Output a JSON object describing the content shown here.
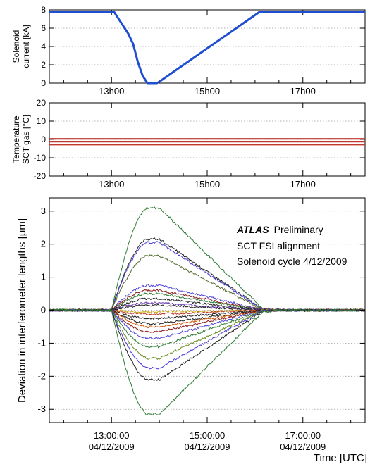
{
  "colors": {
    "solenoid_line": "#1f4fd1",
    "temperature_line": "#c0392b",
    "grid": "#9a9a9a",
    "frame": "#000000"
  },
  "chart_data": [
    {
      "type": "line",
      "panel": "solenoid",
      "ylabel_line1": "Solenoid",
      "ylabel_line2": "current [kA]",
      "x_unit": "hours UTC",
      "xlim": [
        11.7,
        18.3
      ],
      "ylim": [
        0,
        8
      ],
      "yticks": [
        0,
        2,
        4,
        6,
        8
      ],
      "xticks": [
        13,
        15,
        17
      ],
      "xtick_labels": [
        "13h00",
        "15h00",
        "17h00"
      ],
      "grid": "horizontal dotted",
      "series": [
        {
          "color": "#1f4fd1",
          "x": [
            11.7,
            13.05,
            13.2,
            13.35,
            13.45,
            13.55,
            13.65,
            13.75,
            13.95,
            14.0,
            16.1,
            18.3
          ],
          "y": [
            7.8,
            7.8,
            6.6,
            5.4,
            4.3,
            2.3,
            0.8,
            0.0,
            0.0,
            0.15,
            7.8,
            7.8
          ]
        }
      ]
    },
    {
      "type": "line",
      "panel": "temperature",
      "ylabel_line1": "Temperature",
      "ylabel_line2": "SCT gas [°C]",
      "x_unit": "hours UTC",
      "xlim": [
        11.7,
        18.3
      ],
      "ylim": [
        -20,
        20
      ],
      "yticks": [
        -20,
        -10,
        0,
        10,
        20
      ],
      "xticks": [
        13,
        15,
        17
      ],
      "xtick_labels": [
        "13h00",
        "15h00",
        "17h00"
      ],
      "grid": "horizontal dotted",
      "series": [
        {
          "color": "#c0392b",
          "x": [
            11.7,
            18.3
          ],
          "y": [
            0.3,
            0.3
          ]
        },
        {
          "color": "#c0392b",
          "x": [
            11.7,
            18.3
          ],
          "y": [
            -1.2,
            -1.2
          ]
        },
        {
          "color": "#c0392b",
          "x": [
            11.7,
            18.3
          ],
          "y": [
            -2.8,
            -2.8
          ]
        }
      ]
    },
    {
      "type": "line",
      "panel": "fsi",
      "ylabel": "Deviation in interferometer lengths [μm]",
      "xlabel": "Time [UTC]",
      "x_unit": "hours UTC",
      "xlim": [
        11.7,
        18.3
      ],
      "ylim": [
        -3.4,
        3.4
      ],
      "yticks": [
        -3,
        -2,
        -1,
        0,
        1,
        2,
        3
      ],
      "xticks": [
        13,
        15,
        17
      ],
      "xtick_labels_time": [
        "13:00:00",
        "15:00:00",
        "17:00:00"
      ],
      "xtick_labels_date": [
        "04/12/2009",
        "04/12/2009",
        "04/12/2009"
      ],
      "grid": "horizontal dotted",
      "annotation_bold": "ATLAS",
      "annotation_suffix": "Preliminary",
      "annotation_line2": "SCT FSI alignment",
      "annotation_line3": "Solenoid cycle 4/12/2009",
      "series": [
        {
          "color": "#2e7d32",
          "peak": 3.1
        },
        {
          "color": "#222222",
          "peak": 2.15
        },
        {
          "color": "#4b3fd8",
          "peak": 2.05
        },
        {
          "color": "#556b2f",
          "peak": 1.65
        },
        {
          "color": "#4b3fd8",
          "peak": 0.75
        },
        {
          "color": "#8b1a1a",
          "peak": 0.6
        },
        {
          "color": "#2e7d32",
          "peak": 0.5
        },
        {
          "color": "#222222",
          "peak": 0.35
        },
        {
          "color": "#6a3fb0",
          "peak": 0.22
        },
        {
          "color": "#222222",
          "peak": 0.15
        },
        {
          "color": "#c9a300",
          "peak": -0.05
        },
        {
          "color": "#c0392b",
          "peak": -0.12
        },
        {
          "color": "#222222",
          "peak": -0.25
        },
        {
          "color": "#222222",
          "peak": -0.4
        },
        {
          "color": "#d35400",
          "peak": -0.5
        },
        {
          "color": "#8b1a1a",
          "peak": -0.65
        },
        {
          "color": "#4b3fd8",
          "peak": -0.85
        },
        {
          "color": "#2e7d32",
          "peak": -1.1
        },
        {
          "color": "#6b8e23",
          "peak": -1.45
        },
        {
          "color": "#4b3fd8",
          "peak": -1.75
        },
        {
          "color": "#222222",
          "peak": -2.1
        },
        {
          "color": "#2e7d32",
          "peak": -3.15
        }
      ]
    }
  ]
}
